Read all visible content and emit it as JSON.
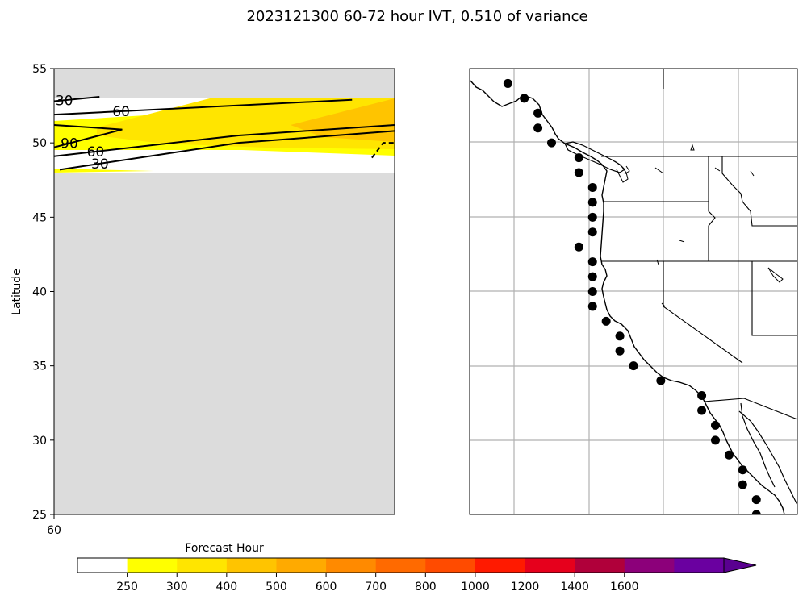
{
  "chart_data": [
    {
      "type": "contour",
      "title": "2023121300 60-72 hour IVT, 0.510 of variance",
      "xlabel": "",
      "ylabel": "Latitude",
      "x_ticks": [
        "60"
      ],
      "y_ticks": [
        25,
        30,
        35,
        40,
        45,
        50,
        55
      ],
      "ylim": [
        25,
        55
      ],
      "xlim": [
        60,
        72
      ],
      "grid": false,
      "masked_color": "#dcdcdc",
      "filled_levels": [
        {
          "range": "250-300",
          "color": "#ffff00"
        },
        {
          "range": "300-400",
          "color": "#ffe500"
        },
        {
          "range": "400-500",
          "color": "#ffc400"
        }
      ],
      "contour_lines": [
        {
          "label": "30",
          "points": [
            [
              60,
              52.8
            ],
            [
              61.6,
              53.1
            ]
          ]
        },
        {
          "label": "60",
          "points": [
            [
              60,
              51.9
            ],
            [
              70.5,
              52.9
            ]
          ]
        },
        {
          "label": "90",
          "points": [
            [
              60,
              49.7
            ],
            [
              62.4,
              50.9
            ],
            [
              60,
              51.2
            ]
          ]
        },
        {
          "label": "60",
          "points": [
            [
              60,
              49.1
            ],
            [
              66.5,
              50.5
            ],
            [
              72,
              51.2
            ]
          ]
        },
        {
          "label": "30",
          "points": [
            [
              60.2,
              48.2
            ],
            [
              66.5,
              50.0
            ],
            [
              72,
              50.8
            ]
          ]
        },
        {
          "label": "",
          "dashed": true,
          "points": [
            [
              71.2,
              49.0
            ],
            [
              71.6,
              50.0
            ],
            [
              72,
              50.0
            ]
          ]
        }
      ]
    },
    {
      "type": "map",
      "region": "US West Coast",
      "grid": true,
      "lon_range": [
        -135,
        -111
      ],
      "lat_range": [
        25,
        55
      ],
      "marker_color": "#000000",
      "forecast_points_lonlat": [
        [
          -132.2,
          54.0
        ],
        [
          -131.0,
          53.0
        ],
        [
          -130.0,
          52.0
        ],
        [
          -130.0,
          51.0
        ],
        [
          -129.0,
          50.0
        ],
        [
          -127.0,
          49.0
        ],
        [
          -127.0,
          48.0
        ],
        [
          -126.0,
          47.0
        ],
        [
          -126.0,
          46.0
        ],
        [
          -126.0,
          45.0
        ],
        [
          -126.0,
          44.0
        ],
        [
          -127.0,
          43.0
        ],
        [
          -126.0,
          42.0
        ],
        [
          -126.0,
          41.0
        ],
        [
          -126.0,
          40.0
        ],
        [
          -126.0,
          39.0
        ],
        [
          -125.0,
          38.0
        ],
        [
          -124.0,
          37.0
        ],
        [
          -124.0,
          36.0
        ],
        [
          -123.0,
          35.0
        ],
        [
          -121.0,
          34.0
        ],
        [
          -118.0,
          33.0
        ],
        [
          -118.0,
          32.0
        ],
        [
          -117.0,
          31.0
        ],
        [
          -117.0,
          30.0
        ],
        [
          -116.0,
          29.0
        ],
        [
          -115.0,
          28.0
        ],
        [
          -115.0,
          27.0
        ],
        [
          -114.0,
          26.0
        ],
        [
          -114.0,
          25.0
        ]
      ]
    }
  ],
  "colorbar": {
    "label": "Forecast Hour",
    "ticks": [
      "250",
      "300",
      "400",
      "500",
      "600",
      "700",
      "800",
      "1000",
      "1200",
      "1400",
      "1600"
    ],
    "colors": [
      "#ffffff",
      "#ffff00",
      "#ffe500",
      "#ffc400",
      "#ffaa00",
      "#ff8a00",
      "#ff6a00",
      "#ff4b00",
      "#ff1a00",
      "#e6001c",
      "#b0003a",
      "#8c007a",
      "#6a00a0",
      "#5a0090"
    ]
  }
}
